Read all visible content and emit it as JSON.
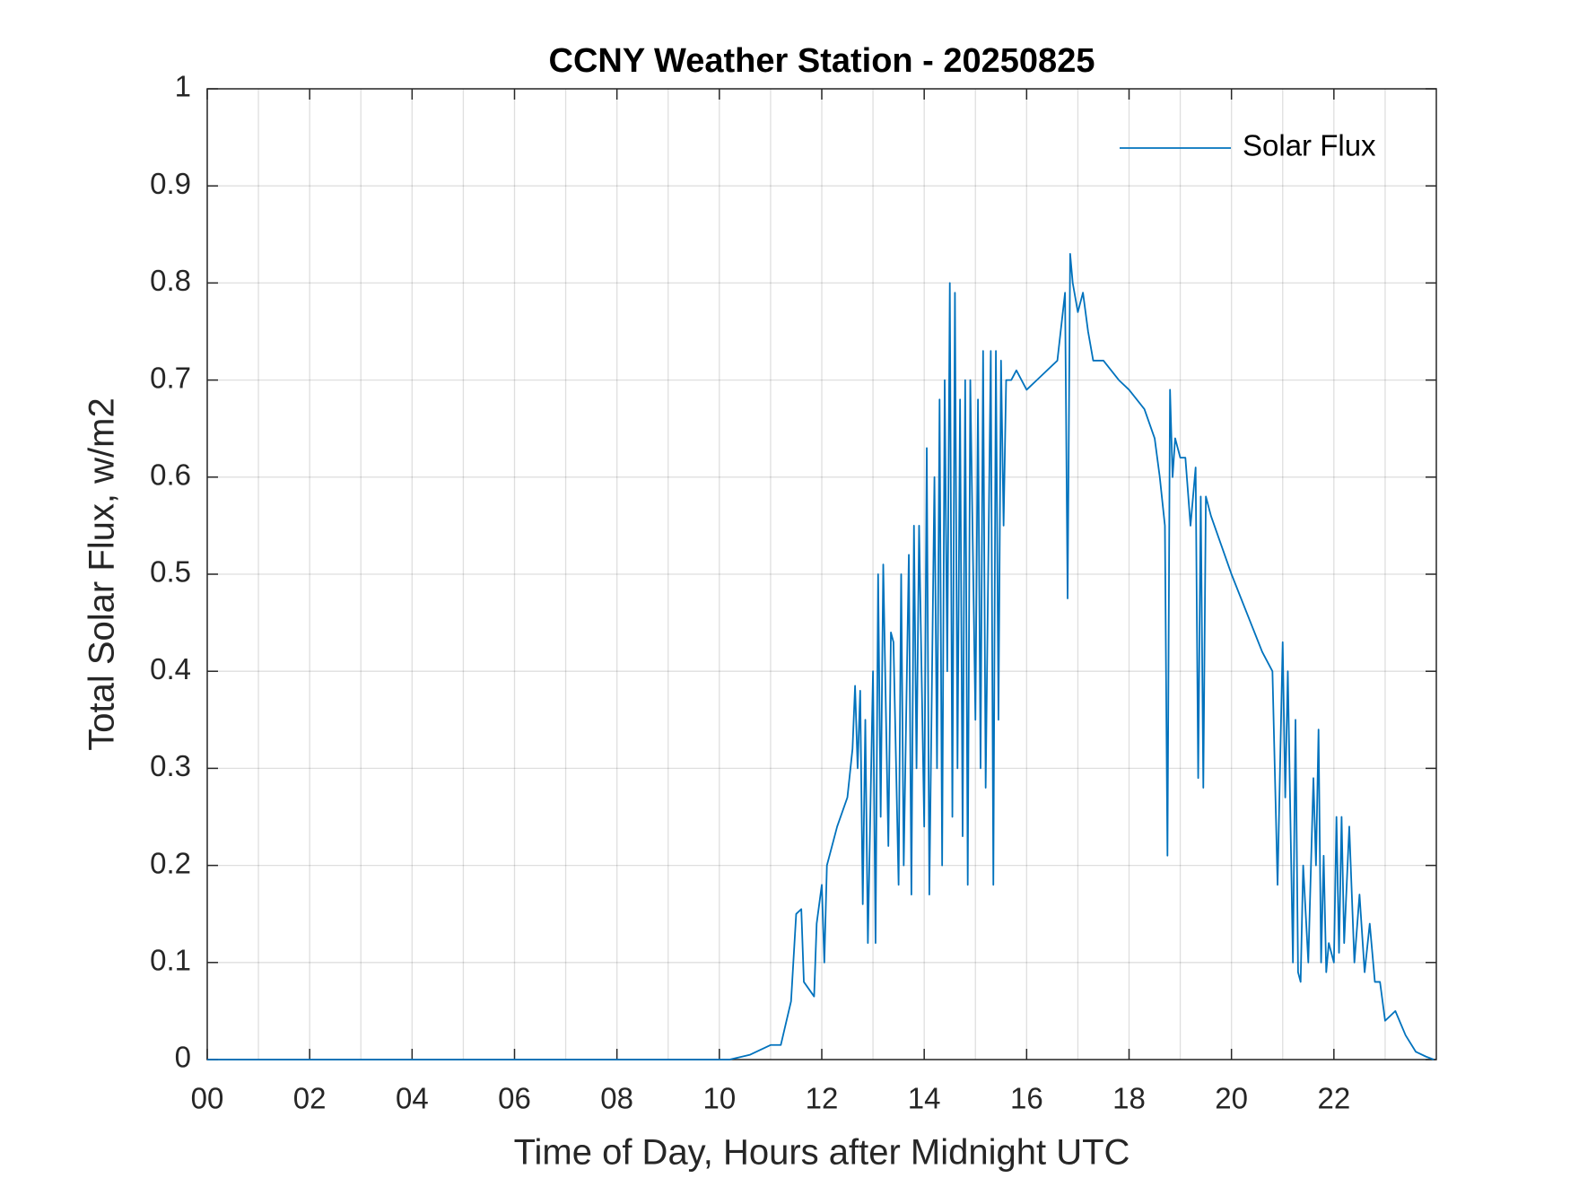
{
  "chart_data": {
    "type": "line",
    "title": "CCNY Weather Station - 20250825",
    "xlabel": "Time of Day, Hours after Midnight UTC",
    "ylabel": "Total Solar Flux, w/m2",
    "xlim": [
      0,
      24
    ],
    "ylim": [
      0,
      1
    ],
    "xticks": [
      {
        "value": 0,
        "label": "00"
      },
      {
        "value": 2,
        "label": "02"
      },
      {
        "value": 4,
        "label": "04"
      },
      {
        "value": 6,
        "label": "06"
      },
      {
        "value": 8,
        "label": "08"
      },
      10,
      12,
      14,
      16,
      18,
      20,
      22
    ],
    "xminor_grid": [
      1,
      3,
      5,
      7,
      9,
      11,
      13,
      15,
      17,
      19,
      21,
      23
    ],
    "yticks": [
      0,
      0.1,
      0.2,
      0.3,
      0.4,
      0.5,
      0.6,
      0.7,
      0.8,
      0.9,
      1
    ],
    "grid": true,
    "legend": "upper right",
    "x": [
      0,
      10.2,
      10.6,
      11.0,
      11.2,
      11.4,
      11.5,
      11.6,
      11.65,
      11.85,
      11.9,
      12.0,
      12.05,
      12.1,
      12.3,
      12.5,
      12.6,
      12.65,
      12.7,
      12.75,
      12.8,
      12.85,
      12.9,
      13.0,
      13.05,
      13.1,
      13.15,
      13.2,
      13.3,
      13.35,
      13.4,
      13.5,
      13.55,
      13.6,
      13.7,
      13.75,
      13.8,
      13.85,
      13.9,
      14.0,
      14.05,
      14.1,
      14.2,
      14.25,
      14.3,
      14.35,
      14.4,
      14.45,
      14.5,
      14.55,
      14.6,
      14.65,
      14.7,
      14.75,
      14.8,
      14.85,
      14.9,
      15.0,
      15.05,
      15.1,
      15.15,
      15.2,
      15.3,
      15.35,
      15.4,
      15.45,
      15.5,
      15.55,
      15.6,
      15.7,
      15.8,
      16.0,
      16.2,
      16.4,
      16.6,
      16.75,
      16.8,
      16.85,
      16.9,
      17.0,
      17.1,
      17.2,
      17.3,
      17.5,
      17.8,
      18.0,
      18.3,
      18.5,
      18.6,
      18.7,
      18.75,
      18.8,
      18.85,
      18.9,
      19.0,
      19.1,
      19.2,
      19.3,
      19.35,
      19.4,
      19.45,
      19.5,
      19.6,
      19.8,
      20.0,
      20.3,
      20.6,
      20.8,
      20.9,
      21.0,
      21.05,
      21.1,
      21.2,
      21.25,
      21.3,
      21.35,
      21.4,
      21.5,
      21.6,
      21.65,
      21.7,
      21.75,
      21.8,
      21.85,
      21.9,
      22.0,
      22.05,
      22.1,
      22.15,
      22.2,
      22.3,
      22.4,
      22.5,
      22.6,
      22.7,
      22.8,
      22.9,
      23.0,
      23.2,
      23.4,
      23.6,
      23.8,
      23.95
    ],
    "series": [
      {
        "name": "Solar Flux",
        "color": "#0072bd",
        "values": [
          0,
          0,
          0.005,
          0.015,
          0.015,
          0.06,
          0.15,
          0.155,
          0.08,
          0.065,
          0.14,
          0.18,
          0.1,
          0.2,
          0.24,
          0.27,
          0.32,
          0.385,
          0.3,
          0.38,
          0.16,
          0.35,
          0.12,
          0.4,
          0.12,
          0.5,
          0.25,
          0.51,
          0.22,
          0.44,
          0.43,
          0.18,
          0.5,
          0.2,
          0.52,
          0.17,
          0.55,
          0.3,
          0.55,
          0.24,
          0.63,
          0.17,
          0.6,
          0.3,
          0.68,
          0.2,
          0.7,
          0.4,
          0.8,
          0.25,
          0.79,
          0.3,
          0.68,
          0.23,
          0.7,
          0.18,
          0.7,
          0.35,
          0.68,
          0.3,
          0.73,
          0.28,
          0.73,
          0.18,
          0.73,
          0.35,
          0.72,
          0.55,
          0.7,
          0.7,
          0.71,
          0.69,
          0.7,
          0.71,
          0.72,
          0.79,
          0.475,
          0.83,
          0.8,
          0.77,
          0.79,
          0.75,
          0.72,
          0.72,
          0.7,
          0.69,
          0.67,
          0.64,
          0.6,
          0.55,
          0.21,
          0.69,
          0.6,
          0.64,
          0.62,
          0.62,
          0.55,
          0.61,
          0.29,
          0.58,
          0.28,
          0.58,
          0.56,
          0.53,
          0.5,
          0.46,
          0.42,
          0.4,
          0.18,
          0.43,
          0.27,
          0.4,
          0.1,
          0.35,
          0.09,
          0.08,
          0.2,
          0.1,
          0.29,
          0.2,
          0.34,
          0.1,
          0.21,
          0.09,
          0.12,
          0.1,
          0.25,
          0.11,
          0.25,
          0.12,
          0.24,
          0.1,
          0.17,
          0.09,
          0.14,
          0.08,
          0.08,
          0.04,
          0.05,
          0.025,
          0.008,
          0.003,
          0
        ]
      }
    ]
  }
}
